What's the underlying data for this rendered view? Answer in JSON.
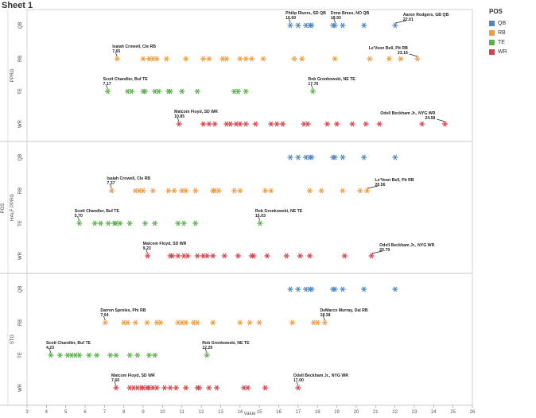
{
  "sheet_title": "Sheet 1",
  "legend": {
    "title": "POS",
    "items": [
      {
        "label": "QB",
        "color": "#4e86c2"
      },
      {
        "label": "RB",
        "color": "#f39b3a"
      },
      {
        "label": "TE",
        "color": "#59b14a"
      },
      {
        "label": "WR",
        "color": "#d9414a"
      }
    ]
  },
  "chart_data": {
    "type": "scatter",
    "marker": "asterisk",
    "xlabel": "Value",
    "xlim": [
      3,
      26
    ],
    "xticks": [
      3,
      4,
      5,
      6,
      7,
      8,
      9,
      10,
      11,
      12,
      13,
      14,
      15,
      16,
      17,
      18,
      19,
      20,
      21,
      22,
      23,
      24,
      25,
      26
    ],
    "outer_axis_label": "POS",
    "positions": [
      "QB",
      "RB",
      "TE",
      "WR"
    ],
    "colors": {
      "QB": "#4e86c2",
      "RB": "#f39b3a",
      "TE": "#59b14a",
      "WR": "#d9414a"
    },
    "panels": [
      {
        "name": "PPRG",
        "series": {
          "QB": [
            16.6,
            17.0,
            17.4,
            17.6,
            17.7,
            18.8,
            18.9,
            19.3,
            20.4,
            22.01
          ],
          "RB": [
            7.65,
            9.0,
            9.3,
            9.5,
            9.7,
            10.2,
            11.2,
            12.1,
            12.4,
            13.1,
            13.3,
            14.0,
            14.3,
            14.6,
            15.2,
            16.8,
            17.2,
            18.9,
            20.7,
            21.7,
            22.3,
            23.16
          ],
          "TE": [
            7.17,
            8.2,
            8.4,
            9.0,
            9.1,
            9.6,
            9.8,
            10.3,
            10.4,
            11.0,
            11.8,
            13.7,
            13.9,
            14.3,
            17.76
          ],
          "WR": [
            10.85,
            12.1,
            12.4,
            12.7,
            13.3,
            13.5,
            13.8,
            14.0,
            14.3,
            14.8,
            15.6,
            15.9,
            16.2,
            17.3,
            17.5,
            18.5,
            19.0,
            19.8,
            20.5,
            21.2,
            23.4,
            24.58
          ]
        },
        "annotations": [
          {
            "pos": "QB",
            "x": 16.6,
            "text": [
              "Philip Rivers, SD QB",
              "16.60"
            ]
          },
          {
            "pos": "QB",
            "x": 18.93,
            "text": [
              "Drew Brees, NO QB",
              "18.93"
            ]
          },
          {
            "pos": "QB",
            "x": 22.01,
            "text": [
              "Aaron Rodgers, GB QB",
              "22.01"
            ]
          },
          {
            "pos": "RB",
            "x": 7.65,
            "text": [
              "Isaiah Crowell, Cle RB",
              "7.65"
            ]
          },
          {
            "pos": "RB",
            "x": 23.16,
            "text": [
              "Le'Veon Bell, Pit RB",
              "23.16"
            ]
          },
          {
            "pos": "TE",
            "x": 7.17,
            "text": [
              "Scott Chandler, Buf TE",
              "7.17"
            ]
          },
          {
            "pos": "TE",
            "x": 17.76,
            "text": [
              "Rob Gronkowski, NE TE",
              "17.76"
            ]
          },
          {
            "pos": "WR",
            "x": 10.85,
            "text": [
              "Malcom Floyd, SD WR",
              "10.85"
            ]
          },
          {
            "pos": "WR",
            "x": 24.58,
            "text": [
              "Odell Beckham Jr., NYG WR",
              "24.58"
            ]
          }
        ]
      },
      {
        "name": "HALF PPRG",
        "series": {
          "QB": [
            16.6,
            17.0,
            17.4,
            17.6,
            17.7,
            18.8,
            18.9,
            19.3,
            20.4,
            22.01
          ],
          "RB": [
            7.37,
            8.6,
            8.8,
            9.0,
            9.5,
            10.3,
            10.6,
            11.0,
            11.2,
            11.7,
            12.6,
            12.7,
            12.9,
            13.7,
            14.0,
            15.3,
            15.6,
            17.6,
            18.2,
            19.3,
            20.2,
            20.56
          ],
          "TE": [
            5.7,
            6.5,
            6.8,
            7.2,
            7.5,
            7.6,
            7.8,
            8.3,
            9.1,
            9.6,
            10.8,
            11.1,
            11.7,
            15.03
          ],
          "WR": [
            9.23,
            10.4,
            10.5,
            10.8,
            11.1,
            11.3,
            11.8,
            12.1,
            12.3,
            12.6,
            13.2,
            13.9,
            14.6,
            14.7,
            15.4,
            16.4,
            17.1,
            17.6,
            19.4,
            20.79
          ]
        },
        "annotations": [
          {
            "pos": "RB",
            "x": 7.37,
            "text": [
              "Isaiah Crowell, Cle RB",
              "7.37"
            ]
          },
          {
            "pos": "RB",
            "x": 20.56,
            "text": [
              "Le'Veon Bell, Pit RB",
              "20.56"
            ]
          },
          {
            "pos": "TE",
            "x": 5.7,
            "text": [
              "Scott Chandler, Buf TE",
              "5.70"
            ]
          },
          {
            "pos": "TE",
            "x": 15.03,
            "text": [
              "Rob Gronkowski, NE TE",
              "15.03"
            ]
          },
          {
            "pos": "WR",
            "x": 9.23,
            "text": [
              "Malcom Floyd, SD WR",
              "9.23"
            ]
          },
          {
            "pos": "WR",
            "x": 20.79,
            "text": [
              "Odell Beckham Jr., NYG WR",
              "20.79"
            ]
          }
        ]
      },
      {
        "name": "STG",
        "series": {
          "QB": [
            16.6,
            17.0,
            17.4,
            17.6,
            17.7,
            18.8,
            18.9,
            19.3,
            20.4,
            22.01
          ],
          "RB": [
            7.04,
            8.0,
            8.2,
            8.6,
            9.2,
            9.7,
            9.9,
            10.8,
            11.0,
            11.2,
            11.6,
            11.8,
            12.6,
            14.0,
            14.5,
            15.0,
            16.7,
            17.8,
            18.0,
            18.38
          ],
          "TE": [
            4.23,
            4.7,
            5.1,
            5.3,
            5.5,
            5.7,
            6.2,
            6.6,
            7.3,
            7.6,
            8.3,
            8.7,
            9.3,
            9.6,
            12.29
          ],
          "WR": [
            7.6,
            8.3,
            8.5,
            8.7,
            8.9,
            9.0,
            9.2,
            9.3,
            9.5,
            9.7,
            10.1,
            10.4,
            10.7,
            11.2,
            11.8,
            11.9,
            12.4,
            12.8,
            14.2,
            14.4,
            15.3,
            17.0
          ]
        },
        "annotations": [
          {
            "pos": "RB",
            "x": 7.04,
            "text": [
              "Darren Sproles, Phi RB",
              "7.04"
            ]
          },
          {
            "pos": "RB",
            "x": 18.38,
            "text": [
              "DeMarco Murray, Dal RB",
              "18.38"
            ]
          },
          {
            "pos": "TE",
            "x": 4.23,
            "text": [
              "Scott Chandler, Buf TE",
              "4.23"
            ]
          },
          {
            "pos": "TE",
            "x": 12.29,
            "text": [
              "Rob Gronkowski, NE TE",
              "12.29"
            ]
          },
          {
            "pos": "WR",
            "x": 7.6,
            "text": [
              "Malcom Floyd, SD WR",
              "7.60"
            ]
          },
          {
            "pos": "WR",
            "x": 17.0,
            "text": [
              "Odell Beckham Jr., NYG WR",
              "17.00"
            ]
          }
        ]
      }
    ]
  }
}
